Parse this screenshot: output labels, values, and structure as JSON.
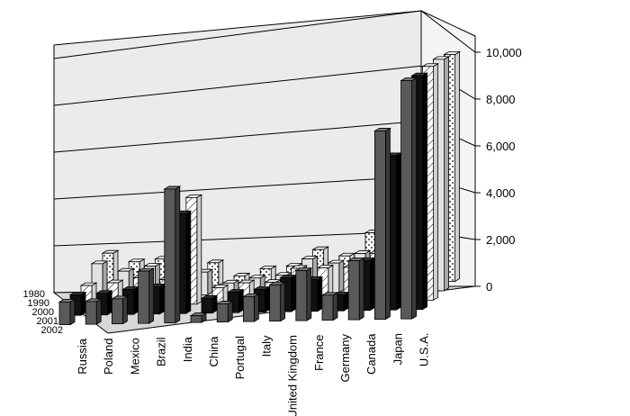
{
  "chart_data": {
    "type": "bar",
    "title": "",
    "xlabel": "",
    "ylabel": "",
    "ylim": [
      0,
      10000
    ],
    "yticks": [
      "0",
      "2,000",
      "4,000",
      "6,000",
      "8,000",
      "10,000"
    ],
    "categories": [
      "Russia",
      "Poland",
      "Mexico",
      "Brazil",
      "India",
      "China",
      "Portugal",
      "Italy",
      "United Kingdom",
      "France",
      "Germany",
      "Canada",
      "Japan",
      "U.S.A."
    ],
    "series": [
      {
        "name": "1980",
        "values": [
          1500,
          1100,
          1200,
          1400,
          1000,
          400,
          700,
          800,
          1500,
          1200,
          2200,
          2200,
          4000,
          10000
        ]
      },
      {
        "name": "1990",
        "values": [
          1450,
          1100,
          1300,
          1300,
          1000,
          500,
          700,
          800,
          1500,
          1300,
          1700,
          2700,
          5000,
          10200
        ]
      },
      {
        "name": "2000",
        "values": [
          900,
          1000,
          1200,
          1100,
          4700,
          700,
          900,
          900,
          1500,
          1500,
          1500,
          2100,
          5600,
          10300
        ]
      },
      {
        "name": "2001",
        "values": [
          900,
          950,
          1100,
          1200,
          4400,
          650,
          900,
          1000,
          1500,
          1400,
          700,
          2200,
          6800,
          10300
        ]
      },
      {
        "name": "2002",
        "values": [
          1000,
          1000,
          1100,
          2300,
          5900,
          300,
          800,
          1100,
          1600,
          2200,
          1100,
          2600,
          8300,
          10500
        ]
      }
    ]
  },
  "colors": {
    "background": "#ffffff",
    "wall": "#ebebeb",
    "floor": "#d8d8d8",
    "gridline": "#000000"
  }
}
